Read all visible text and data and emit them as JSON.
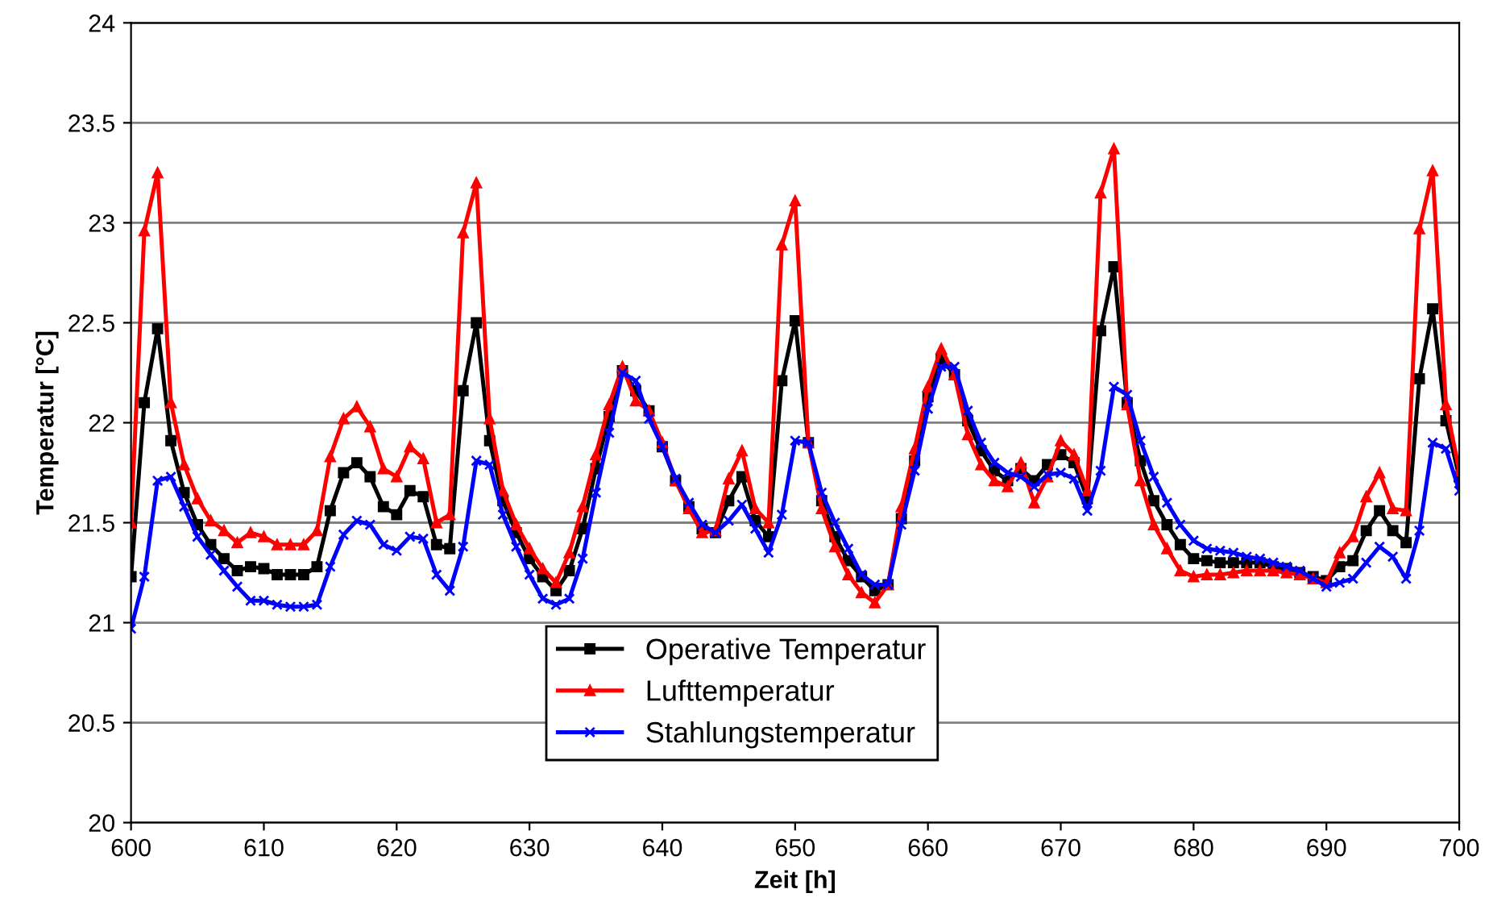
{
  "chart_data": {
    "type": "line",
    "xlabel": "Zeit [h]",
    "ylabel": "Temperatur [°C]",
    "x": [
      600,
      601,
      602,
      603,
      604,
      605,
      606,
      607,
      608,
      609,
      610,
      611,
      612,
      613,
      614,
      615,
      616,
      617,
      618,
      619,
      620,
      621,
      622,
      623,
      624,
      625,
      626,
      627,
      628,
      629,
      630,
      631,
      632,
      633,
      634,
      635,
      636,
      637,
      638,
      639,
      640,
      641,
      642,
      643,
      644,
      645,
      646,
      647,
      648,
      649,
      650,
      651,
      652,
      653,
      654,
      655,
      656,
      657,
      658,
      659,
      660,
      661,
      662,
      663,
      664,
      665,
      666,
      667,
      668,
      669,
      670,
      671,
      672,
      673,
      674,
      675,
      676,
      677,
      678,
      679,
      680,
      681,
      682,
      683,
      684,
      685,
      686,
      687,
      688,
      689,
      690,
      691,
      692,
      693,
      694,
      695,
      696,
      697,
      698,
      699,
      700
    ],
    "xlim": [
      600,
      700
    ],
    "xticks": [
      600,
      610,
      620,
      630,
      640,
      650,
      660,
      670,
      680,
      690,
      700
    ],
    "ylim": [
      20,
      24
    ],
    "yticks": [
      20,
      20.5,
      21,
      21.5,
      22,
      22.5,
      23,
      23.5,
      24
    ],
    "grid": "y",
    "legend": "bottom",
    "line_style": "solid",
    "series": [
      {
        "name": "Operative Temperatur",
        "color": "#000000",
        "marker": "square",
        "values": [
          21.23,
          22.1,
          22.47,
          21.91,
          21.65,
          21.49,
          21.39,
          21.32,
          21.26,
          21.28,
          21.27,
          21.24,
          21.24,
          21.24,
          21.28,
          21.56,
          21.75,
          21.8,
          21.73,
          21.58,
          21.54,
          21.66,
          21.63,
          21.39,
          21.37,
          22.16,
          22.5,
          21.91,
          21.61,
          21.45,
          21.32,
          21.23,
          21.16,
          21.26,
          21.47,
          21.77,
          22.03,
          22.26,
          22.16,
          22.06,
          21.88,
          21.71,
          21.58,
          21.47,
          21.45,
          21.61,
          21.73,
          21.51,
          21.43,
          22.21,
          22.51,
          21.9,
          21.61,
          21.43,
          21.31,
          21.23,
          21.16,
          21.19,
          21.52,
          21.81,
          22.13,
          22.32,
          22.24,
          22.01,
          21.86,
          21.76,
          21.71,
          21.77,
          21.71,
          21.79,
          21.84,
          21.8,
          21.62,
          22.46,
          22.78,
          22.1,
          21.81,
          21.61,
          21.49,
          21.39,
          21.32,
          21.31,
          21.3,
          21.3,
          21.3,
          21.3,
          21.28,
          21.27,
          21.25,
          21.23,
          21.21,
          21.28,
          21.31,
          21.46,
          21.56,
          21.46,
          21.4,
          22.22,
          22.57,
          22.01,
          21.73
        ]
      },
      {
        "name": "Lufttemperatur",
        "color": "#ff0000",
        "marker": "triangle",
        "values": [
          21.5,
          22.96,
          23.25,
          22.1,
          21.79,
          21.62,
          21.51,
          21.46,
          21.4,
          21.45,
          21.43,
          21.39,
          21.39,
          21.39,
          21.46,
          21.83,
          22.02,
          22.08,
          21.98,
          21.77,
          21.73,
          21.88,
          21.82,
          21.5,
          21.54,
          22.95,
          23.2,
          22.02,
          21.66,
          21.49,
          21.37,
          21.27,
          21.2,
          21.35,
          21.58,
          21.84,
          22.09,
          22.28,
          22.11,
          22.06,
          21.9,
          21.71,
          21.57,
          21.45,
          21.46,
          21.72,
          21.86,
          21.57,
          21.5,
          22.89,
          23.11,
          21.9,
          21.57,
          21.38,
          21.24,
          21.15,
          21.1,
          21.19,
          21.58,
          21.87,
          22.18,
          22.37,
          22.24,
          21.94,
          21.79,
          21.71,
          21.68,
          21.8,
          21.6,
          21.73,
          21.91,
          21.84,
          21.66,
          23.15,
          23.37,
          22.09,
          21.71,
          21.49,
          21.37,
          21.26,
          21.23,
          21.24,
          21.24,
          21.25,
          21.26,
          21.26,
          21.26,
          21.25,
          21.24,
          21.22,
          21.2,
          21.35,
          21.43,
          21.63,
          21.75,
          21.57,
          21.56,
          22.97,
          23.26,
          22.09,
          21.76
        ]
      },
      {
        "name": "Stahlungstemperatur",
        "color": "#0000ff",
        "marker": "cross",
        "values": [
          20.97,
          21.23,
          21.71,
          21.73,
          21.58,
          21.43,
          21.34,
          21.26,
          21.18,
          21.11,
          21.11,
          21.09,
          21.08,
          21.08,
          21.09,
          21.28,
          21.44,
          21.51,
          21.49,
          21.39,
          21.36,
          21.43,
          21.42,
          21.24,
          21.16,
          21.38,
          21.81,
          21.79,
          21.54,
          21.38,
          21.24,
          21.12,
          21.09,
          21.12,
          21.32,
          21.65,
          21.95,
          22.25,
          22.21,
          22.02,
          21.88,
          21.72,
          21.6,
          21.49,
          21.45,
          21.51,
          21.59,
          21.47,
          21.35,
          21.54,
          21.91,
          21.9,
          21.65,
          21.5,
          21.37,
          21.24,
          21.19,
          21.19,
          21.49,
          21.76,
          22.07,
          22.28,
          22.28,
          22.06,
          21.9,
          21.8,
          21.75,
          21.73,
          21.68,
          21.74,
          21.75,
          21.72,
          21.56,
          21.76,
          22.18,
          22.14,
          21.91,
          21.73,
          21.6,
          21.49,
          21.41,
          21.37,
          21.36,
          21.35,
          21.33,
          21.32,
          21.3,
          21.28,
          21.26,
          21.22,
          21.18,
          21.2,
          21.22,
          21.3,
          21.38,
          21.33,
          21.22,
          21.46,
          21.9,
          21.87,
          21.66
        ]
      }
    ]
  }
}
